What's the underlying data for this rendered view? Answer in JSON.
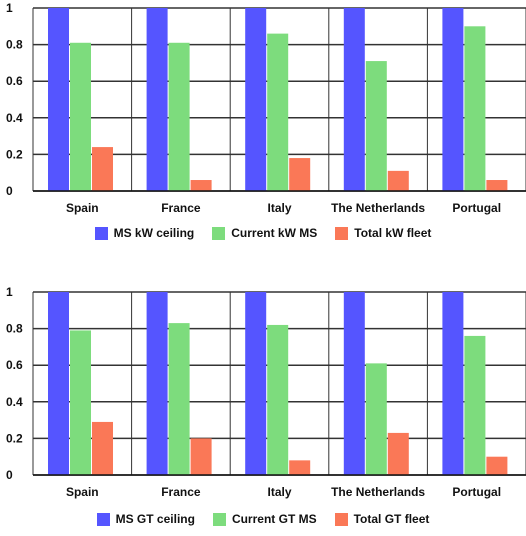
{
  "colors": {
    "ceiling": "#5555ff",
    "current": "#7ddc7d",
    "total": "#fa7857",
    "grid": "#333333"
  },
  "chart_data": [
    {
      "type": "bar",
      "categories": [
        "Spain",
        "France",
        "Italy",
        "The Netherlands",
        "Portugal"
      ],
      "ylim": [
        0,
        1
      ],
      "yticks": [
        "0",
        "0.2",
        "0.4",
        "0.6",
        "0.8",
        "1"
      ],
      "legend_position": "bottom",
      "grid": true,
      "series": [
        {
          "name": "MS kW ceiling",
          "values": [
            1,
            1,
            1,
            1,
            1
          ]
        },
        {
          "name": "Current kW MS",
          "values": [
            0.81,
            0.81,
            0.86,
            0.71,
            0.9
          ]
        },
        {
          "name": "Total kW fleet",
          "values": [
            0.24,
            0.06,
            0.18,
            0.11,
            0.06
          ]
        }
      ]
    },
    {
      "type": "bar",
      "categories": [
        "Spain",
        "France",
        "Italy",
        "The Netherlands",
        "Portugal"
      ],
      "ylim": [
        0,
        1
      ],
      "yticks": [
        "0",
        "0.2",
        "0.4",
        "0.6",
        "0.8",
        "1"
      ],
      "legend_position": "bottom",
      "grid": true,
      "series": [
        {
          "name": "MS GT ceiling",
          "values": [
            1,
            1,
            1,
            1,
            1
          ]
        },
        {
          "name": "Current GT MS",
          "values": [
            0.79,
            0.83,
            0.82,
            0.61,
            0.76
          ]
        },
        {
          "name": "Total GT fleet",
          "values": [
            0.29,
            0.2,
            0.08,
            0.23,
            0.1
          ]
        }
      ]
    }
  ]
}
